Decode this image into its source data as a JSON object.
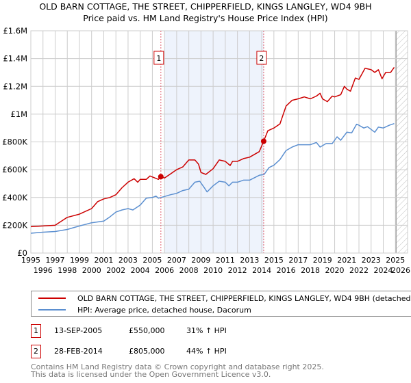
{
  "title_line1": "OLD BARN COTTAGE, THE STREET, CHIPPERFIELD, KINGS LANGLEY, WD4 9BH",
  "title_line2": "Price paid vs. HM Land Registry's House Price Index (HPI)",
  "colors": {
    "property": "#cc0000",
    "hpi": "#5b8fd0",
    "shade": "#eef3fc",
    "grid": "#cccccc"
  },
  "chart_data": {
    "type": "line",
    "xlim": [
      1995,
      2026
    ],
    "ylim": [
      0,
      1600000
    ],
    "yticks": [
      0,
      200000,
      400000,
      600000,
      800000,
      1000000,
      1200000,
      1400000,
      1600000
    ],
    "ytick_labels": [
      "£0",
      "£200K",
      "£400K",
      "£600K",
      "£800K",
      "£1M",
      "£1.2M",
      "£1.4M",
      "£1.6M"
    ],
    "xticks": [
      1995,
      1996,
      1997,
      1998,
      1999,
      2000,
      2001,
      2002,
      2003,
      2004,
      2005,
      2006,
      2007,
      2008,
      2009,
      2010,
      2011,
      2012,
      2013,
      2014,
      2015,
      2016,
      2017,
      2018,
      2019,
      2020,
      2021,
      2022,
      2023,
      2024,
      2025,
      2026
    ],
    "grid": true,
    "shaded_range": [
      2006.0,
      2014.16
    ],
    "forecast_hatch_from": 2025.05,
    "series": [
      {
        "name": "OLD BARN COTTAGE, THE STREET, CHIPPERFIELD, KINGS LANGLEY, WD4 9BH (detached house)",
        "x": [
          1995,
          1996,
          1997,
          1998,
          1999,
          2000,
          2000.5,
          2001,
          2001.5,
          2002,
          2002.5,
          2003,
          2003.5,
          2003.8,
          2004,
          2004.5,
          2004.8,
          2005.5,
          2005.7,
          2006,
          2006.5,
          2007,
          2007.5,
          2008,
          2008.5,
          2008.8,
          2009,
          2009.4,
          2010,
          2010.5,
          2011,
          2011.4,
          2011.6,
          2012,
          2012.5,
          2013,
          2013.8,
          2014.16,
          2014.5,
          2015,
          2015.5,
          2016,
          2016.5,
          2017,
          2017.5,
          2018,
          2018.5,
          2018.8,
          2019,
          2019.4,
          2019.8,
          2020,
          2020.5,
          2020.8,
          2021,
          2021.3,
          2021.7,
          2022,
          2022.5,
          2023,
          2023.3,
          2023.6,
          2023.9,
          2024.2,
          2024.6,
          2024.9
        ],
        "y": [
          190000,
          195000,
          200000,
          257000,
          280000,
          320000,
          370000,
          390000,
          400000,
          420000,
          470000,
          510000,
          535000,
          510000,
          530000,
          530000,
          555000,
          530000,
          550000,
          540000,
          570000,
          600000,
          620000,
          670000,
          670000,
          640000,
          580000,
          566000,
          607000,
          670000,
          660000,
          630000,
          660000,
          660000,
          680000,
          690000,
          730000,
          805000,
          880000,
          900000,
          930000,
          1058000,
          1100000,
          1110000,
          1124000,
          1110000,
          1130000,
          1150000,
          1110000,
          1090000,
          1130000,
          1124000,
          1140000,
          1200000,
          1180000,
          1165000,
          1260000,
          1250000,
          1330000,
          1320000,
          1300000,
          1320000,
          1255000,
          1300000,
          1300000,
          1337000
        ]
      },
      {
        "name": "HPI: Average price, detached house, Dacorum",
        "x": [
          1995,
          1996,
          1997,
          1998,
          1999,
          2000,
          2001,
          2001.5,
          2002,
          2002.5,
          2003,
          2003.4,
          2004,
          2004.5,
          2005,
          2005.3,
          2005.5,
          2006,
          2006.5,
          2007,
          2007.5,
          2008,
          2008.5,
          2008.9,
          2009.3,
          2009.5,
          2010,
          2010.5,
          2011,
          2011.3,
          2011.6,
          2012,
          2012.5,
          2013,
          2013.8,
          2014.2,
          2014.6,
          2015,
          2015.5,
          2016,
          2016.5,
          2017,
          2017.5,
          2018,
          2018.5,
          2018.8,
          2019.3,
          2019.8,
          2020.2,
          2020.5,
          2021,
          2021.4,
          2021.8,
          2022,
          2022.4,
          2022.7,
          2023.3,
          2023.6,
          2024,
          2024.5,
          2024.9
        ],
        "y": [
          143000,
          150000,
          155000,
          170000,
          195000,
          218000,
          230000,
          260000,
          295000,
          310000,
          320000,
          310000,
          345000,
          395000,
          400000,
          410000,
          395000,
          407000,
          420000,
          430000,
          450000,
          460000,
          510000,
          517000,
          467000,
          440000,
          484000,
          517000,
          510000,
          484000,
          510000,
          510000,
          525000,
          525000,
          560000,
          566000,
          615000,
          632000,
          673000,
          738000,
          763000,
          780000,
          780000,
          780000,
          796000,
          763000,
          788000,
          788000,
          837000,
          812000,
          870000,
          865000,
          927000,
          920000,
          900000,
          910000,
          870000,
          907000,
          900000,
          920000,
          932000
        ]
      }
    ],
    "sales": [
      {
        "label": "1",
        "x": 2005.7,
        "y": 550000
      },
      {
        "label": "2",
        "x": 2014.16,
        "y": 805000
      }
    ]
  },
  "legend": {
    "property": "OLD BARN COTTAGE, THE STREET, CHIPPERFIELD, KINGS LANGLEY, WD4 9BH (detached house)",
    "hpi": "HPI: Average price, detached house, Dacorum"
  },
  "transactions": [
    {
      "num": "1",
      "date": "13-SEP-2005",
      "price": "£550,000",
      "hpi": "31% ↑ HPI"
    },
    {
      "num": "2",
      "date": "28-FEB-2014",
      "price": "£805,000",
      "hpi": "44% ↑ HPI"
    }
  ],
  "footer": {
    "line1": "Contains HM Land Registry data © Crown copyright and database right 2025.",
    "line2": "This data is licensed under the Open Government Licence v3.0."
  }
}
